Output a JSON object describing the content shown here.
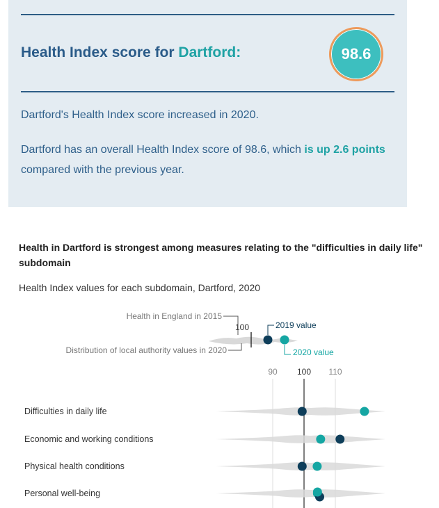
{
  "summary": {
    "title_prefix": "Health Index score for ",
    "place": "Dartford:",
    "score": "98.6",
    "change_sentence": "Dartford's Health Index score increased in 2020.",
    "detail_before": "Dartford has an overall Health Index score of 98.6, which ",
    "detail_highlight": "is up 2.6 points",
    "detail_after": " compared with the previous year."
  },
  "figure": {
    "heading": "Health in Dartford is strongest among measures relating to the \"difficulties in daily life\" subdomain",
    "subtitle": "Health Index values for each subdomain, Dartford, 2020"
  },
  "legend": {
    "england_label": "Health in England in 2015",
    "baseline_value": "100",
    "value_2019": "2019 value",
    "value_2020": "2020 value",
    "distribution_label": "Distribution of local authority values in 2020"
  },
  "colors": {
    "v2019": "#0e3e5a",
    "v2020": "#15a6a3",
    "distribution": "#d9d9d9"
  },
  "chart_data": {
    "type": "scatter",
    "x_ticks": [
      90,
      100,
      110
    ],
    "xlim": [
      78,
      130
    ],
    "baseline": 100,
    "categories": [
      "Difficulties in daily life",
      "Economic and working conditions",
      "Physical health conditions",
      "Personal well-being"
    ],
    "series": [
      {
        "name": "2019 value",
        "values": [
          99.4,
          111.5,
          99.4,
          105
        ]
      },
      {
        "name": "2020 value",
        "values": [
          119.3,
          105.3,
          104.2,
          104.3
        ]
      }
    ]
  }
}
